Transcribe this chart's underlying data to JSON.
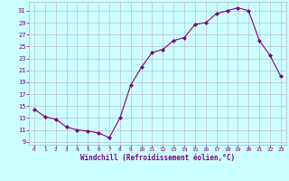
{
  "x": [
    0,
    1,
    2,
    3,
    4,
    5,
    6,
    7,
    8,
    9,
    10,
    11,
    12,
    13,
    14,
    15,
    16,
    17,
    18,
    19,
    20,
    21,
    22,
    23
  ],
  "y": [
    14.5,
    13.2,
    12.8,
    11.5,
    11.0,
    10.8,
    10.5,
    9.7,
    13.0,
    18.5,
    21.5,
    24.0,
    24.5,
    26.0,
    26.5,
    28.7,
    29.0,
    30.5,
    31.0,
    31.5,
    31.0,
    26.0,
    23.5,
    20.0
  ],
  "line_color": "#800080",
  "marker": "D",
  "marker_size": 2,
  "bg_color": "#ccffff",
  "grid_color": "#b0b0c8",
  "xlabel": "Windchill (Refroidissement éolien,°C)",
  "xlabel_color": "#800080",
  "tick_color": "#800080",
  "xlim": [
    -0.5,
    23.5
  ],
  "ylim": [
    8.5,
    32.5
  ],
  "yticks": [
    9,
    11,
    13,
    15,
    17,
    19,
    21,
    23,
    25,
    27,
    29,
    31
  ],
  "xticks": [
    0,
    1,
    2,
    3,
    4,
    5,
    6,
    7,
    8,
    9,
    10,
    11,
    12,
    13,
    14,
    15,
    16,
    17,
    18,
    19,
    20,
    21,
    22,
    23
  ],
  "font_color": "#800080",
  "tick_fontsize": 4.5,
  "xlabel_fontsize": 5.5
}
